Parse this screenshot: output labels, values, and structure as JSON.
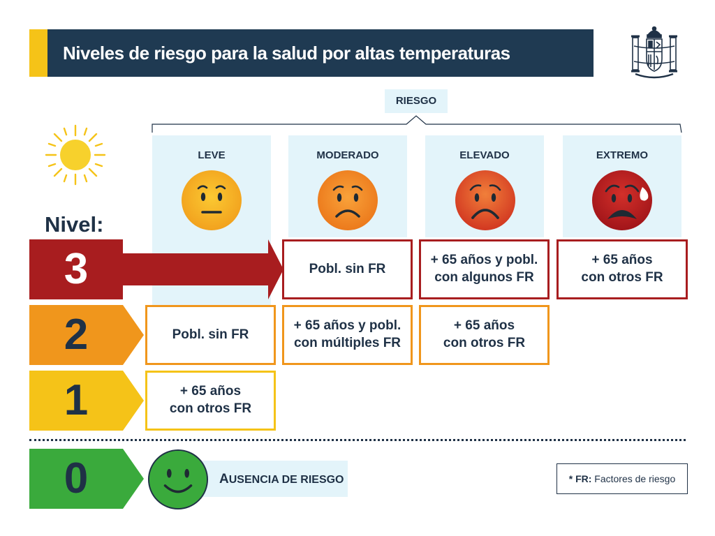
{
  "title": "Niveles de riesgo para la salud por altas temperaturas",
  "colors": {
    "navy": "#1f3a52",
    "yellow": "#f5c318",
    "orange": "#f0961c",
    "red": "#a81d1f",
    "green": "#3aaa3c",
    "light_blue": "#e3f4fa"
  },
  "riesgo_label": "RIESGO",
  "nivel_label": "Nivel:",
  "columns": [
    {
      "label": "LEVE",
      "face": "neutral-face-icon"
    },
    {
      "label": "MODERADO",
      "face": "frowning-face-icon"
    },
    {
      "label": "ELEVADO",
      "face": "sad-face-icon"
    },
    {
      "label": "EXTREMO",
      "face": "crying-face-icon"
    }
  ],
  "levels": [
    {
      "number": "3",
      "color": "#a81d1f",
      "text_color": "#ffffff"
    },
    {
      "number": "2",
      "color": "#f0961c",
      "text_color": "#1f3146"
    },
    {
      "number": "1",
      "color": "#f5c318",
      "text_color": "#1f3146"
    },
    {
      "number": "0",
      "color": "#3aaa3c",
      "text_color": "#1f3146"
    }
  ],
  "cells": {
    "l3_moderado": {
      "line1": "Pobl. sin ",
      "bold": "FR",
      "line2": ""
    },
    "l3_elevado": {
      "line1": "+ 65 años y pobl.",
      "line2": "con algunos ",
      "bold": "FR"
    },
    "l3_extremo": {
      "line1": "+ 65 años",
      "line2": "con otros ",
      "bold": "FR"
    },
    "l2_leve": {
      "line1": "Pobl. sin ",
      "bold": "FR",
      "line2": ""
    },
    "l2_moderado": {
      "line1": "+ 65 años y pobl.",
      "line2": "con múltiples ",
      "bold": "FR"
    },
    "l2_elevado": {
      "line1": "+ 65 años",
      "line2": "con otros ",
      "bold": "FR"
    },
    "l1_leve": {
      "line1": "+ 65 años",
      "line2": "con otros ",
      "bold": "FR"
    }
  },
  "ausencia": {
    "first": "A",
    "rest": "USENCIA DE RIESGO",
    "face": "smiling-face-icon"
  },
  "fr_note": {
    "prefix": "* FR:",
    "text": " Factores de riesgo"
  },
  "icons": {
    "sun": "sun-icon",
    "crest": "coat-of-arms-icon"
  }
}
